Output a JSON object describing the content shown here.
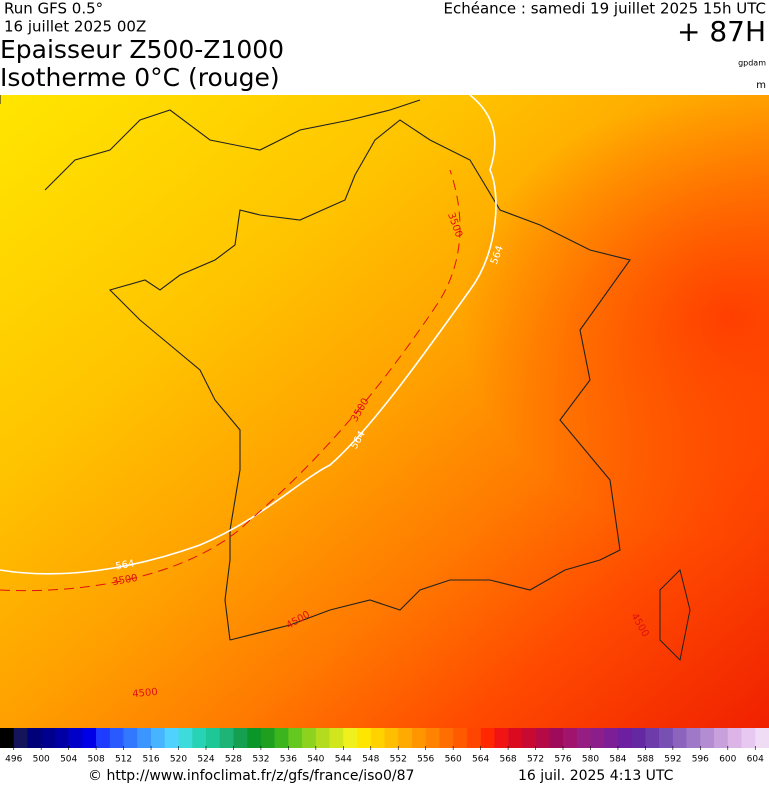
{
  "header": {
    "run": "Run GFS 0.5°",
    "run_date": "16 juillet 2025 00Z",
    "echeance": "Echéance : samedi 19 juillet 2025 15h UTC",
    "lead": "+ 87H",
    "title_line1": "Epaisseur Z500-Z1000",
    "title_line2": "Isotherme 0°C (rouge)",
    "unit1": "gpdam",
    "unit2": "m"
  },
  "map": {
    "contour_labels": [
      564,
      3500,
      3500,
      564,
      3500,
      564,
      4500,
      4500,
      4500
    ],
    "contour_colors": [
      "#ffffff",
      "#e01010"
    ]
  },
  "colorbar": {
    "ticks": [
      496,
      500,
      504,
      508,
      512,
      516,
      520,
      524,
      528,
      532,
      536,
      540,
      544,
      548,
      552,
      556,
      560,
      564,
      568,
      572,
      576,
      580,
      584,
      588,
      592,
      596,
      600,
      604
    ],
    "colors": [
      "#000000",
      "#14145a",
      "#000078",
      "#00008c",
      "#0000a5",
      "#0000c8",
      "#0000e6",
      "#1e3cff",
      "#285aff",
      "#3278ff",
      "#3c96ff",
      "#46b4ff",
      "#50d2ff",
      "#3cdcdc",
      "#28d2b4",
      "#1ec896",
      "#1eb478",
      "#14a050",
      "#0a9628",
      "#1ea01e",
      "#3cb41e",
      "#64c81e",
      "#8cd21e",
      "#b4dc1e",
      "#d2e61e",
      "#f0f01e",
      "#ffe600",
      "#ffd200",
      "#ffbe00",
      "#ffaa00",
      "#ff9600",
      "#ff8200",
      "#ff6e00",
      "#ff5a00",
      "#ff4600",
      "#ff2800",
      "#f01414",
      "#dc0a1e",
      "#c80a32",
      "#b40a46",
      "#a00a5a",
      "#a0146e",
      "#961e82",
      "#8c1e8c",
      "#7d1e96",
      "#6e1ea0",
      "#6428a0",
      "#6e3caa",
      "#7850b4",
      "#8c64be",
      "#a078c8",
      "#b48cd2",
      "#c8a0dc",
      "#dcb4e6",
      "#e6c8f0",
      "#f0dcf5"
    ]
  },
  "footer": {
    "url": "© http://www.infoclimat.fr/z/gfs/france/iso0/87",
    "timestamp": "16 juil. 2025  4:13 UTC"
  }
}
